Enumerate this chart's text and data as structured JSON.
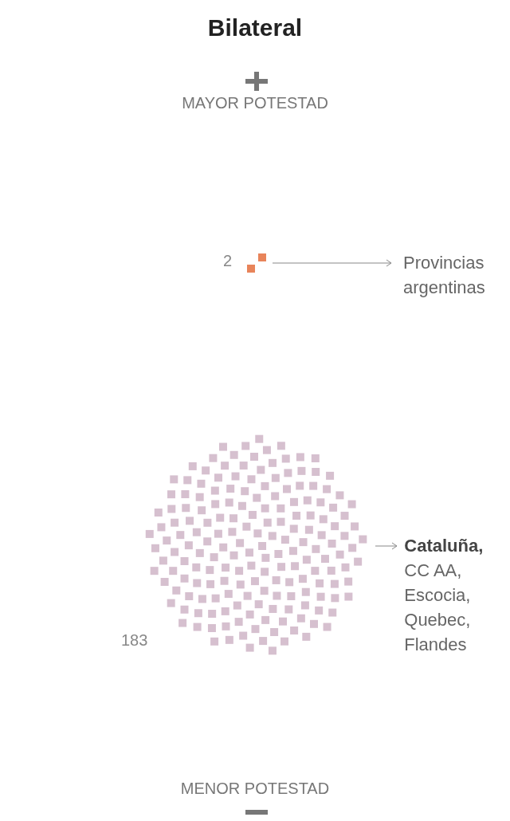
{
  "chart_data": {
    "type": "other",
    "title": "Bilateral",
    "categories": [
      "Provincias argentinas",
      "Cataluña, CC AA, Escocia, Quebec, Flandes"
    ],
    "values": [
      2,
      183
    ],
    "colors": [
      "#e8845a",
      "#d6c0cf"
    ],
    "data_labels": true,
    "annotations": [
      "MAYOR POTESTAD",
      "MENOR POTESTAD"
    ]
  }
}
